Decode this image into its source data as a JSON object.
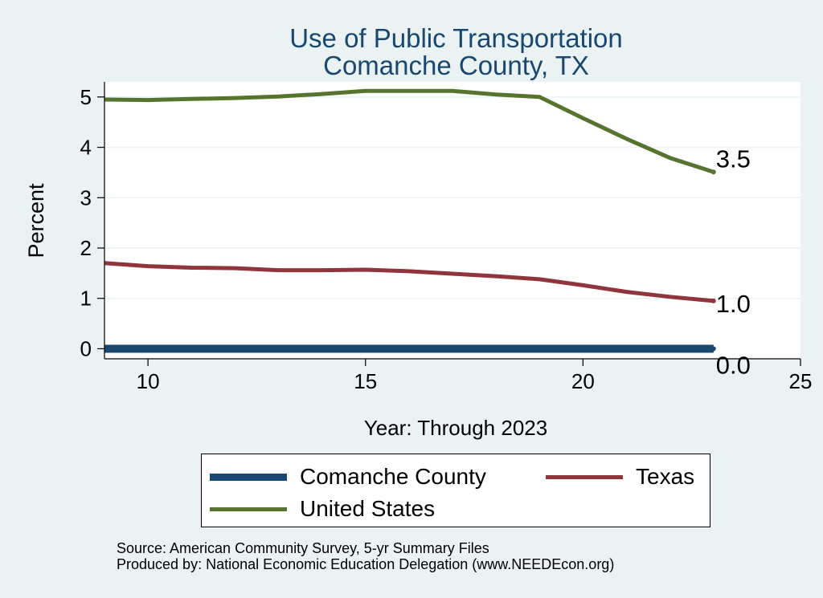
{
  "chart_data": {
    "type": "line",
    "title": "Use of Public Transportation",
    "subtitle": "Comanche County, TX",
    "xlabel": "Year: Through 2023",
    "ylabel": "Percent",
    "xlim": [
      9,
      25
    ],
    "ylim": [
      -0.2,
      5.3
    ],
    "x_ticks": [
      10,
      15,
      20,
      25
    ],
    "y_ticks": [
      0,
      1,
      2,
      3,
      4,
      5
    ],
    "grid": true,
    "legend_position": "bottom",
    "x": [
      9,
      10,
      11,
      12,
      13,
      14,
      15,
      16,
      17,
      18,
      19,
      20,
      21,
      22,
      23
    ],
    "series": [
      {
        "name": "Comanche County",
        "color": "#1a476f",
        "values": [
          0,
          0,
          0,
          0,
          0,
          0,
          0,
          0,
          0,
          0,
          0,
          0,
          0,
          0,
          0
        ],
        "end_label": "0.0"
      },
      {
        "name": "Texas",
        "color": "#90353b",
        "values": [
          1.7,
          1.64,
          1.61,
          1.6,
          1.56,
          1.56,
          1.57,
          1.54,
          1.49,
          1.44,
          1.38,
          1.26,
          1.13,
          1.03,
          0.95
        ],
        "end_label": "1.0"
      },
      {
        "name": "United States",
        "color": "#55752f",
        "values": [
          4.95,
          4.94,
          4.96,
          4.98,
          5.01,
          5.06,
          5.12,
          5.12,
          5.12,
          5.05,
          5.0,
          4.58,
          4.17,
          3.79,
          3.51
        ],
        "end_label": "3.5"
      }
    ]
  },
  "legend": {
    "comanche": "Comanche County",
    "texas": "Texas",
    "us": "United States"
  },
  "footer": {
    "source": "Source: American Community Survey, 5-yr Summary Files",
    "produced_by": "Produced by: National Economic Education Delegation (www.NEEDEcon.org)"
  },
  "colors": {
    "background": "#eaf2f3",
    "title": "#1a476f"
  }
}
